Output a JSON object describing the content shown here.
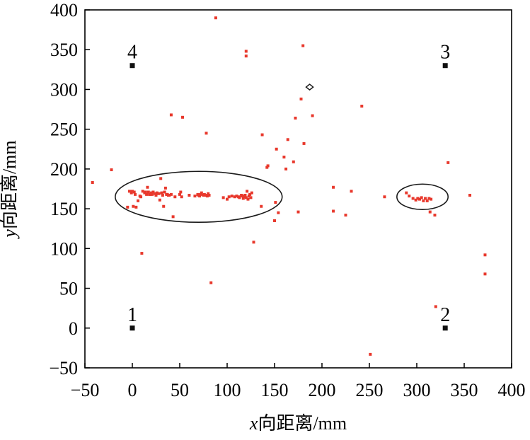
{
  "chart_data": {
    "type": "scatter",
    "xlabel_var": "x",
    "xlabel_text": "向距离/mm",
    "ylabel_var": "y",
    "ylabel_text": "向距离/mm",
    "xlim": [
      -50,
      400
    ],
    "ylim": [
      -50,
      400
    ],
    "xticks": [
      -50,
      0,
      50,
      100,
      150,
      200,
      250,
      300,
      350,
      400
    ],
    "yticks": [
      -50,
      0,
      50,
      100,
      150,
      200,
      250,
      300,
      350,
      400
    ],
    "xtick_labels": [
      "−50",
      "0",
      "50",
      "100",
      "150",
      "200",
      "250",
      "300",
      "350",
      "400"
    ],
    "ytick_labels": [
      "−50",
      "0",
      "50",
      "100",
      "150",
      "200",
      "250",
      "300",
      "350",
      "400"
    ],
    "grid": false,
    "point_color": "#e8382c",
    "sensor_color": "#111111",
    "sensors": [
      {
        "label": "1",
        "x": 0,
        "y": 0
      },
      {
        "label": "2",
        "x": 330,
        "y": 0
      },
      {
        "label": "3",
        "x": 330,
        "y": 330
      },
      {
        "label": "4",
        "x": 0,
        "y": 330
      }
    ],
    "ellipses": [
      {
        "cx": 70,
        "cy": 165,
        "rx": 88,
        "ry": 32
      },
      {
        "cx": 306,
        "cy": 165,
        "rx": 27,
        "ry": 16
      }
    ],
    "diamond_marker": {
      "x": 187,
      "y": 303
    },
    "points": [
      [
        -42,
        183
      ],
      [
        -22,
        199
      ],
      [
        -5,
        152
      ],
      [
        -3,
        172
      ],
      [
        -1,
        170
      ],
      [
        0,
        172
      ],
      [
        1,
        153
      ],
      [
        2,
        171
      ],
      [
        3,
        168
      ],
      [
        4,
        152
      ],
      [
        6,
        160
      ],
      [
        8,
        166
      ],
      [
        9,
        165
      ],
      [
        10,
        94
      ],
      [
        11,
        172
      ],
      [
        13,
        170
      ],
      [
        14,
        171
      ],
      [
        15,
        168
      ],
      [
        16,
        177
      ],
      [
        17,
        171
      ],
      [
        18,
        168
      ],
      [
        19,
        168
      ],
      [
        20,
        170
      ],
      [
        21,
        168
      ],
      [
        22,
        171
      ],
      [
        24,
        169
      ],
      [
        25,
        167
      ],
      [
        26,
        170
      ],
      [
        28,
        169
      ],
      [
        29,
        161
      ],
      [
        30,
        188
      ],
      [
        31,
        170
      ],
      [
        32,
        167
      ],
      [
        33,
        153
      ],
      [
        34,
        171
      ],
      [
        35,
        176
      ],
      [
        36,
        168
      ],
      [
        37,
        168
      ],
      [
        38,
        167
      ],
      [
        39,
        167
      ],
      [
        41,
        168
      ],
      [
        43,
        140
      ],
      [
        41,
        268
      ],
      [
        45,
        165
      ],
      [
        50,
        168
      ],
      [
        51,
        171
      ],
      [
        52,
        165
      ],
      [
        53,
        265
      ],
      [
        60,
        167
      ],
      [
        66,
        166
      ],
      [
        69,
        168
      ],
      [
        70,
        167
      ],
      [
        71,
        166
      ],
      [
        72,
        168
      ],
      [
        73,
        170
      ],
      [
        75,
        167
      ],
      [
        76,
        168
      ],
      [
        77,
        167
      ],
      [
        78,
        245
      ],
      [
        79,
        166
      ],
      [
        80,
        169
      ],
      [
        81,
        167
      ],
      [
        83,
        57
      ],
      [
        88,
        390
      ],
      [
        96,
        164
      ],
      [
        100,
        162
      ],
      [
        102,
        165
      ],
      [
        105,
        166
      ],
      [
        108,
        165
      ],
      [
        110,
        166
      ],
      [
        112,
        165
      ],
      [
        113,
        164
      ],
      [
        115,
        167
      ],
      [
        116,
        166
      ],
      [
        117,
        163
      ],
      [
        118,
        165
      ],
      [
        119,
        167
      ],
      [
        120,
        164
      ],
      [
        120,
        348
      ],
      [
        120,
        342
      ],
      [
        121,
        172
      ],
      [
        122,
        162
      ],
      [
        123,
        166
      ],
      [
        124,
        168
      ],
      [
        125,
        164
      ],
      [
        126,
        170
      ],
      [
        128,
        108
      ],
      [
        136,
        153
      ],
      [
        137,
        243
      ],
      [
        142,
        202
      ],
      [
        143,
        204
      ],
      [
        150,
        135
      ],
      [
        151,
        158
      ],
      [
        152,
        225
      ],
      [
        154,
        145
      ],
      [
        160,
        215
      ],
      [
        162,
        200
      ],
      [
        164,
        237
      ],
      [
        170,
        209
      ],
      [
        172,
        264
      ],
      [
        175,
        146
      ],
      [
        178,
        288
      ],
      [
        180,
        355
      ],
      [
        181,
        232
      ],
      [
        190,
        267
      ],
      [
        212,
        177
      ],
      [
        212,
        147
      ],
      [
        225,
        142
      ],
      [
        231,
        172
      ],
      [
        242,
        279
      ],
      [
        251,
        -33
      ],
      [
        266,
        165
      ],
      [
        289,
        170
      ],
      [
        292,
        166
      ],
      [
        296,
        163
      ],
      [
        299,
        161
      ],
      [
        301,
        163
      ],
      [
        303,
        162
      ],
      [
        305,
        164
      ],
      [
        307,
        160
      ],
      [
        309,
        163
      ],
      [
        311,
        160
      ],
      [
        313,
        163
      ],
      [
        315,
        162
      ],
      [
        314,
        146
      ],
      [
        319,
        142
      ],
      [
        320,
        27
      ],
      [
        333,
        208
      ],
      [
        356,
        167
      ],
      [
        372,
        92
      ],
      [
        372,
        68
      ]
    ]
  }
}
